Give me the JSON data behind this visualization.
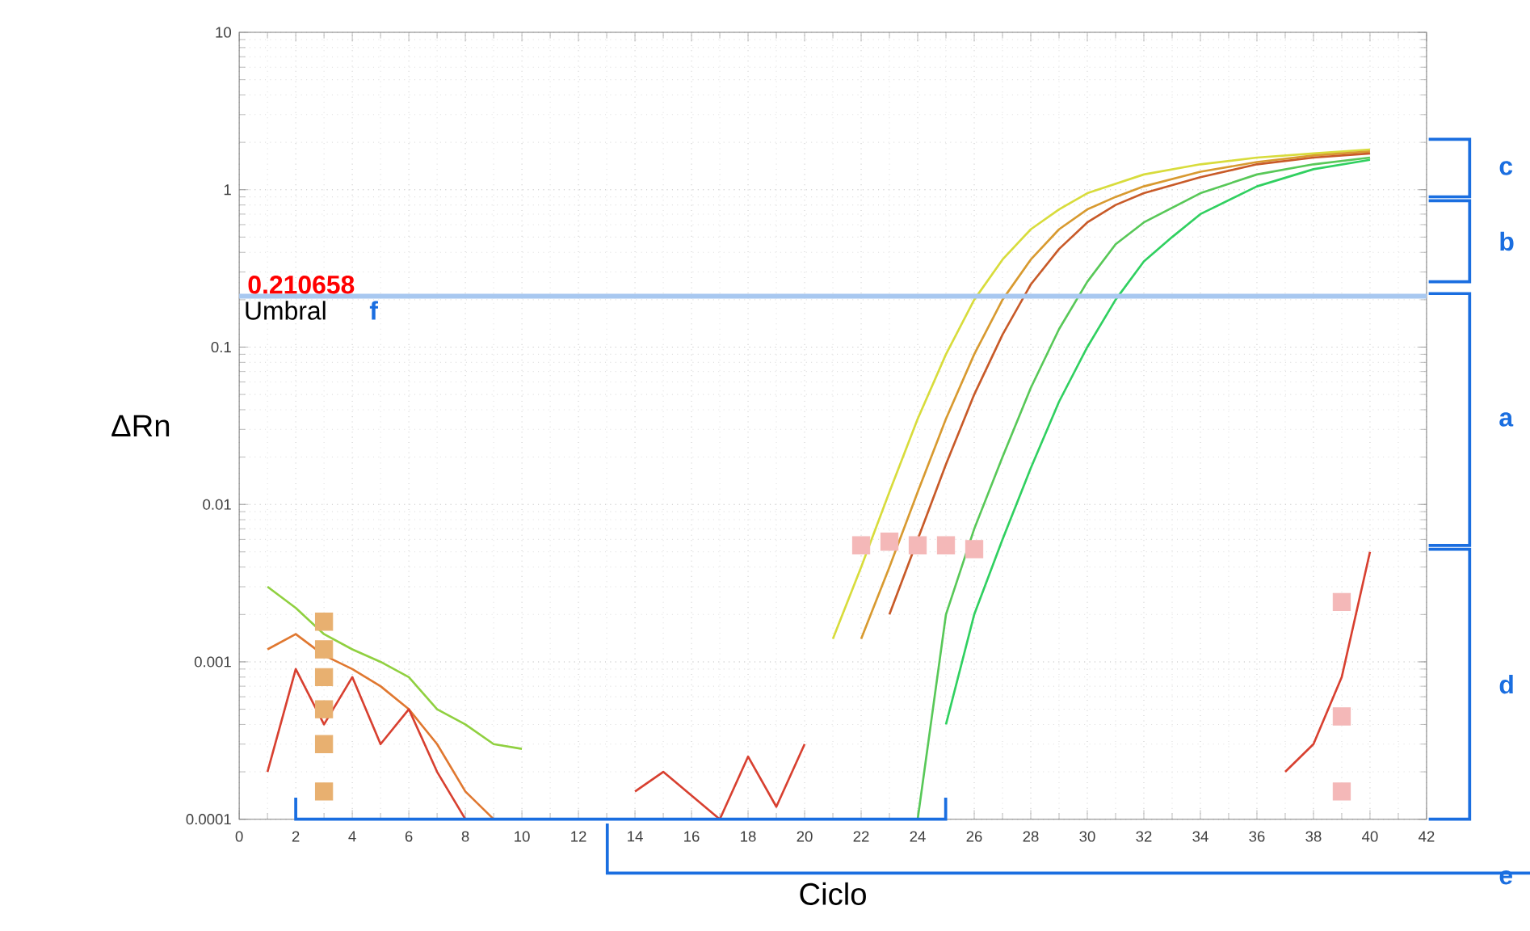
{
  "chart_data": {
    "type": "line",
    "xlabel": "Ciclo",
    "ylabel": "ΔRn",
    "log": "y",
    "grid": true,
    "xlim": [
      0,
      42
    ],
    "ylim": [
      0.0001,
      10
    ],
    "xticks": [
      0,
      2,
      4,
      6,
      8,
      10,
      12,
      14,
      16,
      18,
      20,
      22,
      24,
      26,
      28,
      30,
      32,
      34,
      36,
      38,
      40,
      42
    ],
    "yticks": [
      0.0001,
      0.001,
      0.01,
      0.1,
      1,
      10
    ],
    "series": [
      {
        "color": "#d8dc3c",
        "x": [
          21,
          22,
          23,
          24,
          25,
          26,
          27,
          28,
          29,
          30,
          32,
          34,
          36,
          38,
          40
        ],
        "values": [
          0.0014,
          0.004,
          0.012,
          0.035,
          0.09,
          0.2,
          0.36,
          0.56,
          0.75,
          0.95,
          1.25,
          1.45,
          1.6,
          1.7,
          1.8
        ]
      },
      {
        "color": "#d89a30",
        "x": [
          22,
          23,
          24,
          25,
          26,
          27,
          28,
          29,
          30,
          31,
          32,
          34,
          36,
          38,
          40
        ],
        "values": [
          0.0014,
          0.004,
          0.012,
          0.035,
          0.09,
          0.2,
          0.36,
          0.56,
          0.75,
          0.9,
          1.05,
          1.3,
          1.5,
          1.65,
          1.75
        ]
      },
      {
        "color": "#c85a28",
        "x": [
          23,
          24,
          25,
          26,
          27,
          28,
          29,
          30,
          31,
          32,
          34,
          36,
          38,
          40
        ],
        "values": [
          0.002,
          0.006,
          0.018,
          0.05,
          0.12,
          0.25,
          0.42,
          0.62,
          0.8,
          0.95,
          1.2,
          1.45,
          1.6,
          1.7
        ]
      },
      {
        "color": "#58c858",
        "x": [
          24,
          25,
          26,
          27,
          28,
          29,
          30,
          31,
          32,
          34,
          36,
          38,
          40
        ],
        "values": [
          0.0001,
          0.002,
          0.007,
          0.02,
          0.055,
          0.13,
          0.26,
          0.45,
          0.62,
          0.95,
          1.25,
          1.45,
          1.6
        ]
      },
      {
        "color": "#30d060",
        "x": [
          25,
          26,
          27,
          28,
          29,
          30,
          31,
          32,
          33,
          34,
          36,
          38,
          40
        ],
        "values": [
          0.0004,
          0.002,
          0.006,
          0.017,
          0.045,
          0.1,
          0.2,
          0.35,
          0.5,
          0.7,
          1.05,
          1.35,
          1.55
        ]
      },
      {
        "color": "#90d040",
        "x": [
          1,
          2,
          3,
          4,
          5,
          6,
          7,
          8,
          9,
          10
        ],
        "values": [
          0.003,
          0.0022,
          0.0015,
          0.0012,
          0.001,
          0.0008,
          0.0005,
          0.0004,
          0.0003,
          0.00028
        ]
      },
      {
        "color": "#e07830",
        "x": [
          1,
          2,
          3,
          4,
          5,
          6,
          7,
          8,
          9
        ],
        "values": [
          0.0012,
          0.0015,
          0.0011,
          0.0009,
          0.0007,
          0.0005,
          0.0003,
          0.00015,
          0.0001
        ]
      },
      {
        "color": "#d84030",
        "x": [
          1,
          2,
          3,
          4,
          5,
          6,
          7,
          8
        ],
        "values": [
          0.0002,
          0.0009,
          0.0004,
          0.0008,
          0.0003,
          0.0005,
          0.0002,
          0.0001
        ]
      },
      {
        "color": "#d84030",
        "x": [
          14,
          15,
          17,
          18,
          19,
          20
        ],
        "values": [
          0.00015,
          0.0002,
          0.0001,
          0.00025,
          0.00012,
          0.0003
        ]
      },
      {
        "color": "#d84030",
        "x": [
          37,
          38,
          39,
          40
        ],
        "values": [
          0.0002,
          0.0003,
          0.0008,
          0.005
        ]
      },
      {
        "type": "scatter",
        "color": "#f4b8b8",
        "x": [
          22,
          23,
          24,
          25,
          26,
          39,
          39,
          39
        ],
        "values": [
          0.0055,
          0.0058,
          0.0055,
          0.0055,
          0.0052,
          0.0024,
          0.00045,
          0.00015
        ]
      },
      {
        "type": "scatter",
        "color": "#e8b070",
        "x": [
          3,
          3,
          3,
          3,
          3,
          3
        ],
        "values": [
          0.00015,
          0.0003,
          0.0005,
          0.0008,
          0.0012,
          0.0018
        ]
      }
    ],
    "ref_lines": [
      {
        "axis": "y",
        "value": 0.210658,
        "label": "Umbral",
        "color": "#a8c8f0"
      }
    ],
    "annotations": [
      {
        "text": "0.210658",
        "x": 0.2,
        "y": 0.21
      },
      "f",
      "c",
      "b",
      "a",
      "d",
      "e"
    ]
  }
}
